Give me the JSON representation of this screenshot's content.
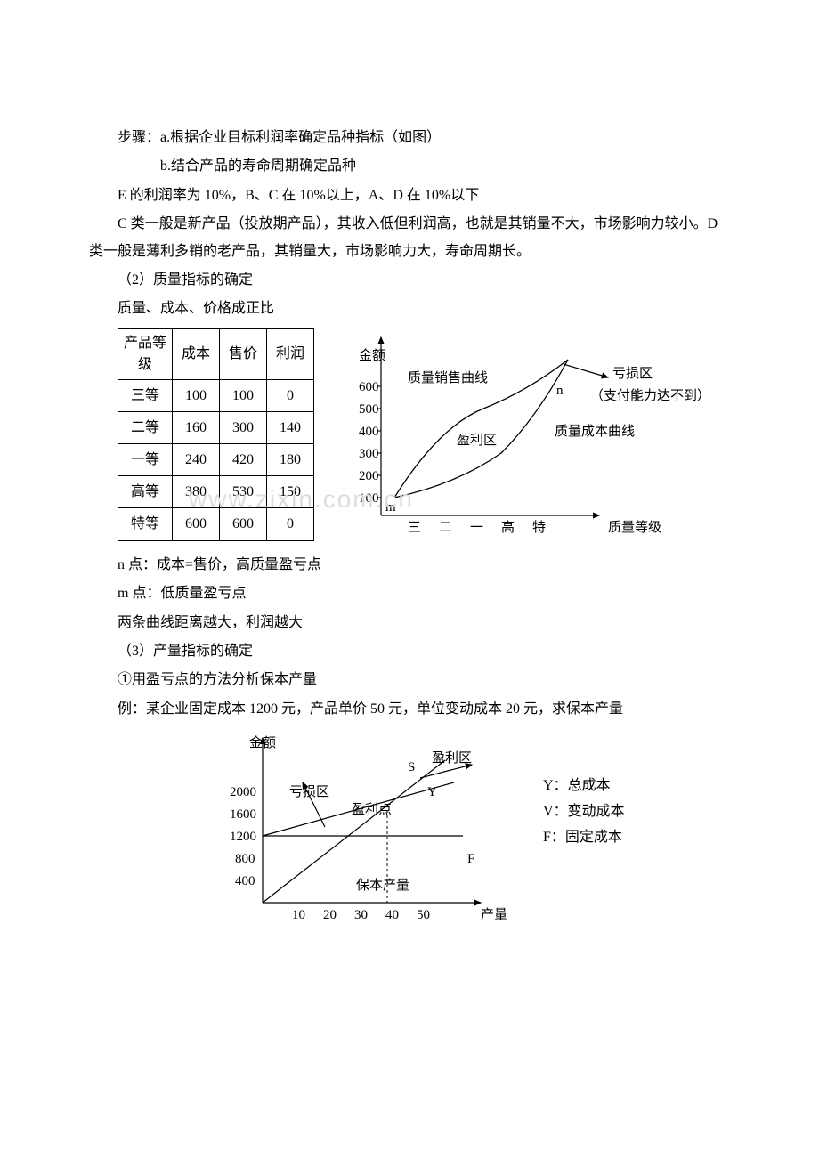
{
  "p1": "步骤：a.根据企业目标利润率确定品种指标（如图）",
  "p2": "b.结合产品的寿命周期确定品种",
  "p3": "E 的利润率为 10%，B、C 在 10%以上，A、D 在 10%以下",
  "p4": "C 类一般是新产品（投放期产品），其收入低但利润高，也就是其销量不大，市场影响力较小。D 类一般是薄利多销的老产品，其销量大，市场影响力大，寿命周期长。",
  "p5": "（2）质量指标的确定",
  "p6": "质量、成本、价格成正比",
  "p7": "n 点：成本=售价，高质量盈亏点",
  "p8": "m 点：低质量盈亏点",
  "p9": "两条曲线距离越大，利润越大",
  "p10": "（3）产量指标的确定",
  "p11": "①用盈亏点的方法分析保本产量",
  "p12": "例：某企业固定成本 1200 元，产品单价 50 元，单位变动成本 20 元，求保本产量",
  "table1": {
    "headers": [
      "产品等级",
      "成本",
      "售价",
      "利润"
    ],
    "rows": [
      [
        "三等",
        "100",
        "100",
        "0"
      ],
      [
        "二等",
        "160",
        "300",
        "140"
      ],
      [
        "一等",
        "240",
        "420",
        "180"
      ],
      [
        "高等",
        "380",
        "530",
        "150"
      ],
      [
        "特等",
        "600",
        "600",
        "0"
      ]
    ]
  },
  "chart1": {
    "type": "line",
    "y_label": "金额",
    "y_ticks": [
      "100",
      "200",
      "300",
      "400",
      "500",
      "600"
    ],
    "x_label": "质量等级",
    "x_ticks": [
      "三",
      "二",
      "一",
      "高",
      "特"
    ],
    "labels": {
      "sales_curve": "质量销售曲线",
      "cost_curve": "质量成本曲线",
      "loss_zone": "亏损区",
      "profit_zone": "盈利区",
      "note": "（支付能力达不到）",
      "m": "m",
      "n": "n"
    },
    "axis_color": "#000000",
    "line_color": "#000000",
    "background_color": "#ffffff"
  },
  "chart2": {
    "type": "line",
    "y_label": "金额",
    "y_ticks": [
      "400",
      "800",
      "1200",
      "1600",
      "2000"
    ],
    "x_label": "产量",
    "x_ticks": [
      "10",
      "20",
      "30",
      "40",
      "50"
    ],
    "labels": {
      "loss_zone": "亏损区",
      "profit_zone": "盈利区",
      "break_even": "盈利点",
      "break_even_qty": "保本产量",
      "S": "S",
      "Y": "Y",
      "F": "F"
    },
    "legend": {
      "Y": "Y：总成本",
      "V": "V：变动成本",
      "F": "F：固定成本"
    },
    "axis_color": "#000000",
    "line_color": "#000000",
    "background_color": "#ffffff"
  },
  "watermark": "www.zixin.com.cn"
}
